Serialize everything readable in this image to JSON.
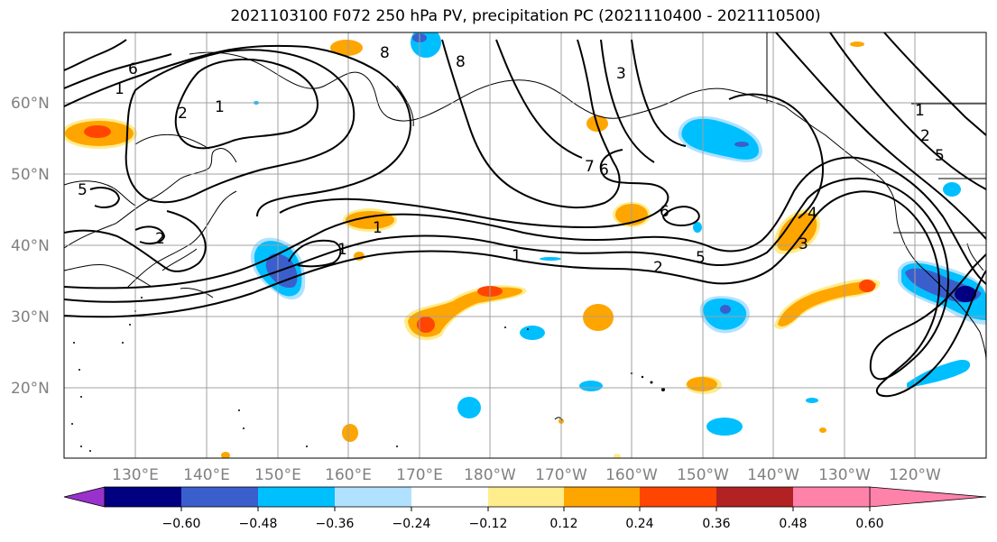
{
  "title": "2021103100 F072 250 hPa PV, precipitation PC (2021110400 - 2021110500)",
  "lat_labels": [
    "60°N",
    "50°N",
    "40°N",
    "30°N",
    "20°N"
  ],
  "lon_labels": [
    "130°E",
    "140°E",
    "150°E",
    "160°E",
    "170°E",
    "180°W",
    "170°W",
    "160°W",
    "150°W",
    "140°W",
    "130°W",
    "120°W"
  ],
  "colorbar": {
    "colors": [
      "#9932cc",
      "#000080",
      "#3a5fcd",
      "#00bfff",
      "#b0e2ff",
      "#ffffff",
      "#ffec8b",
      "#ffa500",
      "#ff4500",
      "#b22222",
      "#ff82ab"
    ],
    "tick_labels": [
      "−0.60",
      "−0.48",
      "−0.36",
      "−0.24",
      "−0.12",
      "0.12",
      "0.24",
      "0.36",
      "0.48",
      "0.60"
    ]
  },
  "pv_contour_labels": [
    "1",
    "2",
    "5",
    "1",
    "2",
    "5",
    "1",
    "1",
    "2",
    "5",
    "6",
    "7",
    "1",
    "2",
    "3",
    "6",
    "4",
    "3",
    "1",
    "6",
    "8",
    "8"
  ]
}
